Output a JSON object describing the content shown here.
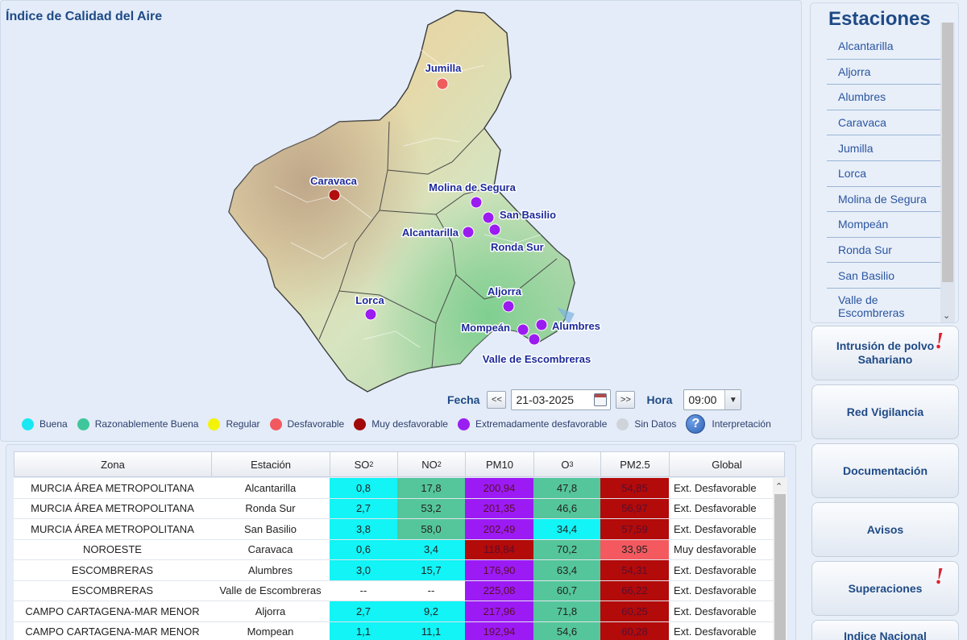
{
  "page": {
    "title": "Índice de Calidad del Aire"
  },
  "map": {
    "stations": [
      {
        "label": "Jumilla",
        "color": "#ee5c5c"
      },
      {
        "label": "Caravaca",
        "color": "#b10e0e"
      },
      {
        "label": "Molina de Segura",
        "color": "#9b1cf0"
      },
      {
        "label": "San Basilio",
        "color": "#9b1cf0"
      },
      {
        "label": "Alcantarilla",
        "color": "#9b1cf0"
      },
      {
        "label": "Ronda Sur",
        "color": "#9b1cf0"
      },
      {
        "label": "Aljorra",
        "color": "#9b1cf0"
      },
      {
        "label": "Lorca",
        "color": "#9b1cf0"
      },
      {
        "label": "Mompeán",
        "color": "#9b1cf0"
      },
      {
        "label": "Alumbres",
        "color": "#9b1cf0"
      },
      {
        "label": "Valle de Escombreras",
        "color": "#9b1cf0"
      }
    ]
  },
  "controls": {
    "fecha_label": "Fecha",
    "prev_label": "<<",
    "date_value": "21-03-2025",
    "next_label": ">>",
    "hora_label": "Hora",
    "hour_value": "09:00"
  },
  "legend": [
    {
      "label": "Buena",
      "color": "#19e8f2"
    },
    {
      "label": "Razonablemente Buena",
      "color": "#3fc69a"
    },
    {
      "label": "Regular",
      "color": "#f3f30a"
    },
    {
      "label": "Desfavorable",
      "color": "#f2595f"
    },
    {
      "label": "Muy desfavorable",
      "color": "#a10709"
    },
    {
      "label": "Extremadamente desfavorable",
      "color": "#9a1df2"
    },
    {
      "label": "Sin Datos",
      "color": "#cfd4da"
    }
  ],
  "legend_help": {
    "icon_glyph": "?",
    "label": "Interpretación"
  },
  "table": {
    "headers": {
      "zona": "Zona",
      "estacion": "Estación",
      "so2": "SO",
      "so2_sub": "2",
      "no2": "NO",
      "no2_sub": "2",
      "pm10": "PM10",
      "o3": "O",
      "o3_sub": "3",
      "pm25": "PM2.5",
      "global": "Global"
    },
    "colors": {
      "buena": "#12f4f6",
      "razonable": "#55c69b",
      "muy": "#b30a0a",
      "ext": "#9c1bf5",
      "desf": "#f4595f"
    },
    "rows": [
      {
        "zona": "MURCIA ÁREA METROPOLITANA",
        "estacion": "Alcantarilla",
        "so2": "0,8",
        "no2": "17,8",
        "pm10": "200,94",
        "o3": "47,8",
        "pm25": "54,85",
        "global": "Ext. Desfavorable"
      },
      {
        "zona": "MURCIA ÁREA METROPOLITANA",
        "estacion": "Ronda Sur",
        "so2": "2,7",
        "no2": "53,2",
        "pm10": "201,35",
        "o3": "46,6",
        "pm25": "56,97",
        "global": "Ext. Desfavorable"
      },
      {
        "zona": "MURCIA ÁREA METROPOLITANA",
        "estacion": "San Basilio",
        "so2": "3,8",
        "no2": "58,0",
        "pm10": "202,49",
        "o3": "34,4",
        "pm25": "57,59",
        "global": "Ext. Desfavorable"
      },
      {
        "zona": "NOROESTE",
        "estacion": "Caravaca",
        "so2": "0,6",
        "no2": "3,4",
        "pm10": "118,84",
        "o3": "70,2",
        "pm25": "33,95",
        "global": "Muy desfavorable"
      },
      {
        "zona": "ESCOMBRERAS",
        "estacion": "Alumbres",
        "so2": "3,0",
        "no2": "15,7",
        "pm10": "176,90",
        "o3": "63,4",
        "pm25": "54,31",
        "global": "Ext. Desfavorable"
      },
      {
        "zona": "ESCOMBRERAS",
        "estacion": "Valle de Escombreras",
        "so2": "--",
        "no2": "--",
        "pm10": "225,08",
        "o3": "60,7",
        "pm25": "66,22",
        "global": "Ext. Desfavorable"
      },
      {
        "zona": "CAMPO CARTAGENA-MAR MENOR",
        "estacion": "Aljorra",
        "so2": "2,7",
        "no2": "9,2",
        "pm10": "217,96",
        "o3": "71,8",
        "pm25": "60,25",
        "global": "Ext. Desfavorable"
      },
      {
        "zona": "CAMPO CARTAGENA-MAR MENOR",
        "estacion": "Mompean",
        "so2": "1,1",
        "no2": "11,1",
        "pm10": "192,94",
        "o3": "54,6",
        "pm25": "60,28",
        "global": "Ext. Desfavorable"
      }
    ]
  },
  "stations_panel": {
    "title": "Estaciones",
    "items": [
      "Alcantarilla",
      "Aljorra",
      "Alumbres",
      "Caravaca",
      "Jumilla",
      "Lorca",
      "Molina de Segura",
      "Mompeán",
      "Ronda Sur",
      "San Basilio",
      "Valle de Escombreras"
    ]
  },
  "side_buttons": [
    {
      "label": "Intrusión de polvo Sahariano",
      "alert": true
    },
    {
      "label": "Red Vigilancia",
      "alert": false
    },
    {
      "label": "Documentación",
      "alert": false
    },
    {
      "label": "Avisos",
      "alert": false
    },
    {
      "label": "Superaciones",
      "alert": true
    },
    {
      "label": "Indice Nacional",
      "alert": false
    }
  ],
  "alert_glyph": "!"
}
